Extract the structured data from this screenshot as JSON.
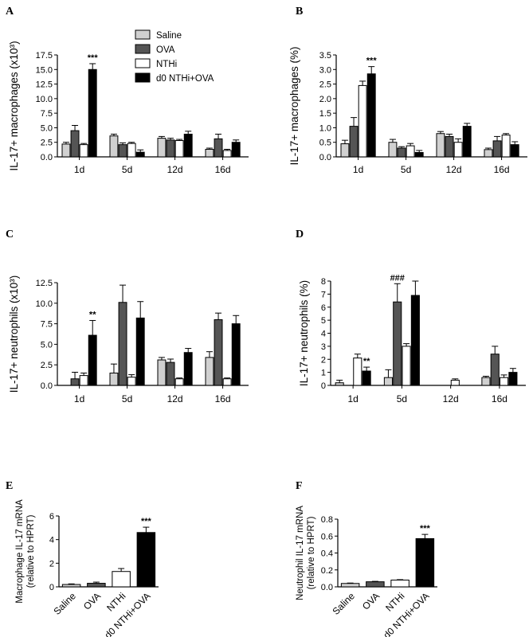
{
  "legend": {
    "entries": [
      {
        "label": "Saline",
        "color": "#d0d0d0"
      },
      {
        "label": "OVA",
        "color": "#555555"
      },
      {
        "label": "NTHi",
        "color": "#ffffff"
      },
      {
        "label": "d0 NTHi+OVA",
        "color": "#000000"
      }
    ]
  },
  "chart_data": [
    {
      "panel": "A",
      "type": "bar",
      "ylabel": "IL-17+ macrophages (x10³)",
      "categories": [
        "1d",
        "5d",
        "12d",
        "16d"
      ],
      "ylim": [
        0,
        17.5
      ],
      "yticks": [
        "0.0",
        "2.5",
        "5.0",
        "7.5",
        "10.0",
        "12.5",
        "15.0",
        "17.5"
      ],
      "series": [
        {
          "name": "Saline",
          "values": [
            2.2,
            3.6,
            3.2,
            1.3
          ],
          "errors": [
            0.3,
            0.3,
            0.3,
            0.2
          ]
        },
        {
          "name": "OVA",
          "values": [
            4.5,
            2.1,
            2.9,
            3.1
          ],
          "errors": [
            0.9,
            0.3,
            0.3,
            0.8
          ]
        },
        {
          "name": "NTHi",
          "values": [
            2.1,
            2.3,
            2.8,
            1.1
          ],
          "errors": [
            0.2,
            0.2,
            0.2,
            0.2
          ]
        },
        {
          "name": "d0 NTHi+OVA",
          "values": [
            15.0,
            0.8,
            3.9,
            2.5
          ],
          "errors": [
            1.0,
            0.4,
            0.5,
            0.4
          ]
        }
      ],
      "annotations": [
        {
          "text": "***",
          "category": "1d",
          "series": "d0 NTHi+OVA"
        }
      ]
    },
    {
      "panel": "B",
      "type": "bar",
      "ylabel": "IL-17+ macrophages (%)",
      "categories": [
        "1d",
        "5d",
        "12d",
        "16d"
      ],
      "ylim": [
        0,
        3.5
      ],
      "yticks": [
        "0.0",
        "0.5",
        "1.0",
        "1.5",
        "2.0",
        "2.5",
        "3.0",
        "3.5"
      ],
      "series": [
        {
          "name": "Saline",
          "values": [
            0.45,
            0.5,
            0.8,
            0.25
          ],
          "errors": [
            0.12,
            0.1,
            0.07,
            0.05
          ]
        },
        {
          "name": "OVA",
          "values": [
            1.05,
            0.3,
            0.7,
            0.55
          ],
          "errors": [
            0.3,
            0.05,
            0.08,
            0.15
          ]
        },
        {
          "name": "NTHi",
          "values": [
            2.45,
            0.38,
            0.5,
            0.75
          ],
          "errors": [
            0.15,
            0.08,
            0.12,
            0.05
          ]
        },
        {
          "name": "d0 NTHi+OVA",
          "values": [
            2.85,
            0.15,
            1.05,
            0.42
          ],
          "errors": [
            0.25,
            0.07,
            0.1,
            0.1
          ]
        }
      ],
      "annotations": [
        {
          "text": "***",
          "category": "1d",
          "series": "d0 NTHi+OVA"
        }
      ]
    },
    {
      "panel": "C",
      "type": "bar",
      "ylabel": "IL-17+ neutrophils (x10³)",
      "categories": [
        "1d",
        "5d",
        "12d",
        "16d"
      ],
      "ylim": [
        0,
        12.5
      ],
      "yticks": [
        "0.0",
        "2.5",
        "5.0",
        "7.5",
        "10.0",
        "12.5"
      ],
      "series": [
        {
          "name": "Saline",
          "values": [
            0.0,
            1.5,
            3.1,
            3.4
          ],
          "errors": [
            0.0,
            1.1,
            0.3,
            0.7
          ]
        },
        {
          "name": "OVA",
          "values": [
            0.8,
            10.1,
            2.8,
            8.0
          ],
          "errors": [
            0.8,
            2.1,
            0.4,
            0.8
          ]
        },
        {
          "name": "NTHi",
          "values": [
            1.2,
            1.0,
            0.8,
            0.8
          ],
          "errors": [
            0.3,
            0.3,
            0.1,
            0.1
          ]
        },
        {
          "name": "d0 NTHi+OVA",
          "values": [
            6.1,
            8.2,
            4.0,
            7.5
          ],
          "errors": [
            1.8,
            2.0,
            0.5,
            1.0
          ]
        }
      ],
      "annotations": [
        {
          "text": "**",
          "category": "1d",
          "series": "d0 NTHi+OVA"
        }
      ]
    },
    {
      "panel": "D",
      "type": "bar",
      "ylabel": "IL-17+ neutrophils (%)",
      "categories": [
        "1d",
        "5d",
        "12d",
        "16d"
      ],
      "ylim": [
        0,
        8
      ],
      "yticks": [
        "0",
        "1",
        "2",
        "3",
        "4",
        "5",
        "6",
        "7",
        "8"
      ],
      "series": [
        {
          "name": "Saline",
          "values": [
            0.2,
            0.6,
            0.0,
            0.6
          ],
          "errors": [
            0.2,
            0.6,
            0.0,
            0.1
          ]
        },
        {
          "name": "OVA",
          "values": [
            0.0,
            6.4,
            0.0,
            2.4
          ],
          "errors": [
            0.0,
            1.4,
            0.0,
            0.6
          ]
        },
        {
          "name": "NTHi",
          "values": [
            2.1,
            3.0,
            0.4,
            0.6
          ],
          "errors": [
            0.3,
            0.2,
            0.1,
            0.2
          ]
        },
        {
          "name": "d0 NTHi+OVA",
          "values": [
            1.1,
            6.9,
            0.0,
            1.0
          ],
          "errors": [
            0.3,
            1.1,
            0.0,
            0.3
          ]
        }
      ],
      "annotations": [
        {
          "text": "###",
          "category": "5d",
          "series": "OVA"
        },
        {
          "text": "**",
          "category": "1d",
          "series": "d0 NTHi+OVA"
        }
      ]
    },
    {
      "panel": "E",
      "type": "bar",
      "ylabel": [
        "Macrophage IL-17 mRNA",
        "(relative to HPRT)"
      ],
      "categories": [
        "Saline",
        "OVA",
        "NTHi",
        "d0 NTHi+OVA"
      ],
      "ylim": [
        0,
        6
      ],
      "yticks": [
        "0",
        "2",
        "4",
        "6"
      ],
      "values": [
        0.2,
        0.3,
        1.3,
        4.6
      ],
      "errors": [
        0.05,
        0.1,
        0.25,
        0.45
      ],
      "colors": [
        "#d0d0d0",
        "#555555",
        "#ffffff",
        "#000000"
      ],
      "annotations": [
        {
          "text": "***",
          "category": "d0 NTHi+OVA"
        }
      ]
    },
    {
      "panel": "F",
      "type": "bar",
      "ylabel": [
        "Neutrophil IL-17 mRNA",
        "(relative to HPRT)"
      ],
      "categories": [
        "Saline",
        "OVA",
        "NTHi",
        "d0 NTHi+OVA"
      ],
      "ylim": [
        0,
        0.8
      ],
      "yticks": [
        "0.0",
        "0.2",
        "0.4",
        "0.6",
        "0.8"
      ],
      "values": [
        0.04,
        0.06,
        0.08,
        0.57
      ],
      "errors": [
        0.005,
        0.005,
        0.005,
        0.05
      ],
      "colors": [
        "#d0d0d0",
        "#555555",
        "#ffffff",
        "#000000"
      ],
      "annotations": [
        {
          "text": "***",
          "category": "d0 NTHi+OVA"
        }
      ]
    }
  ]
}
